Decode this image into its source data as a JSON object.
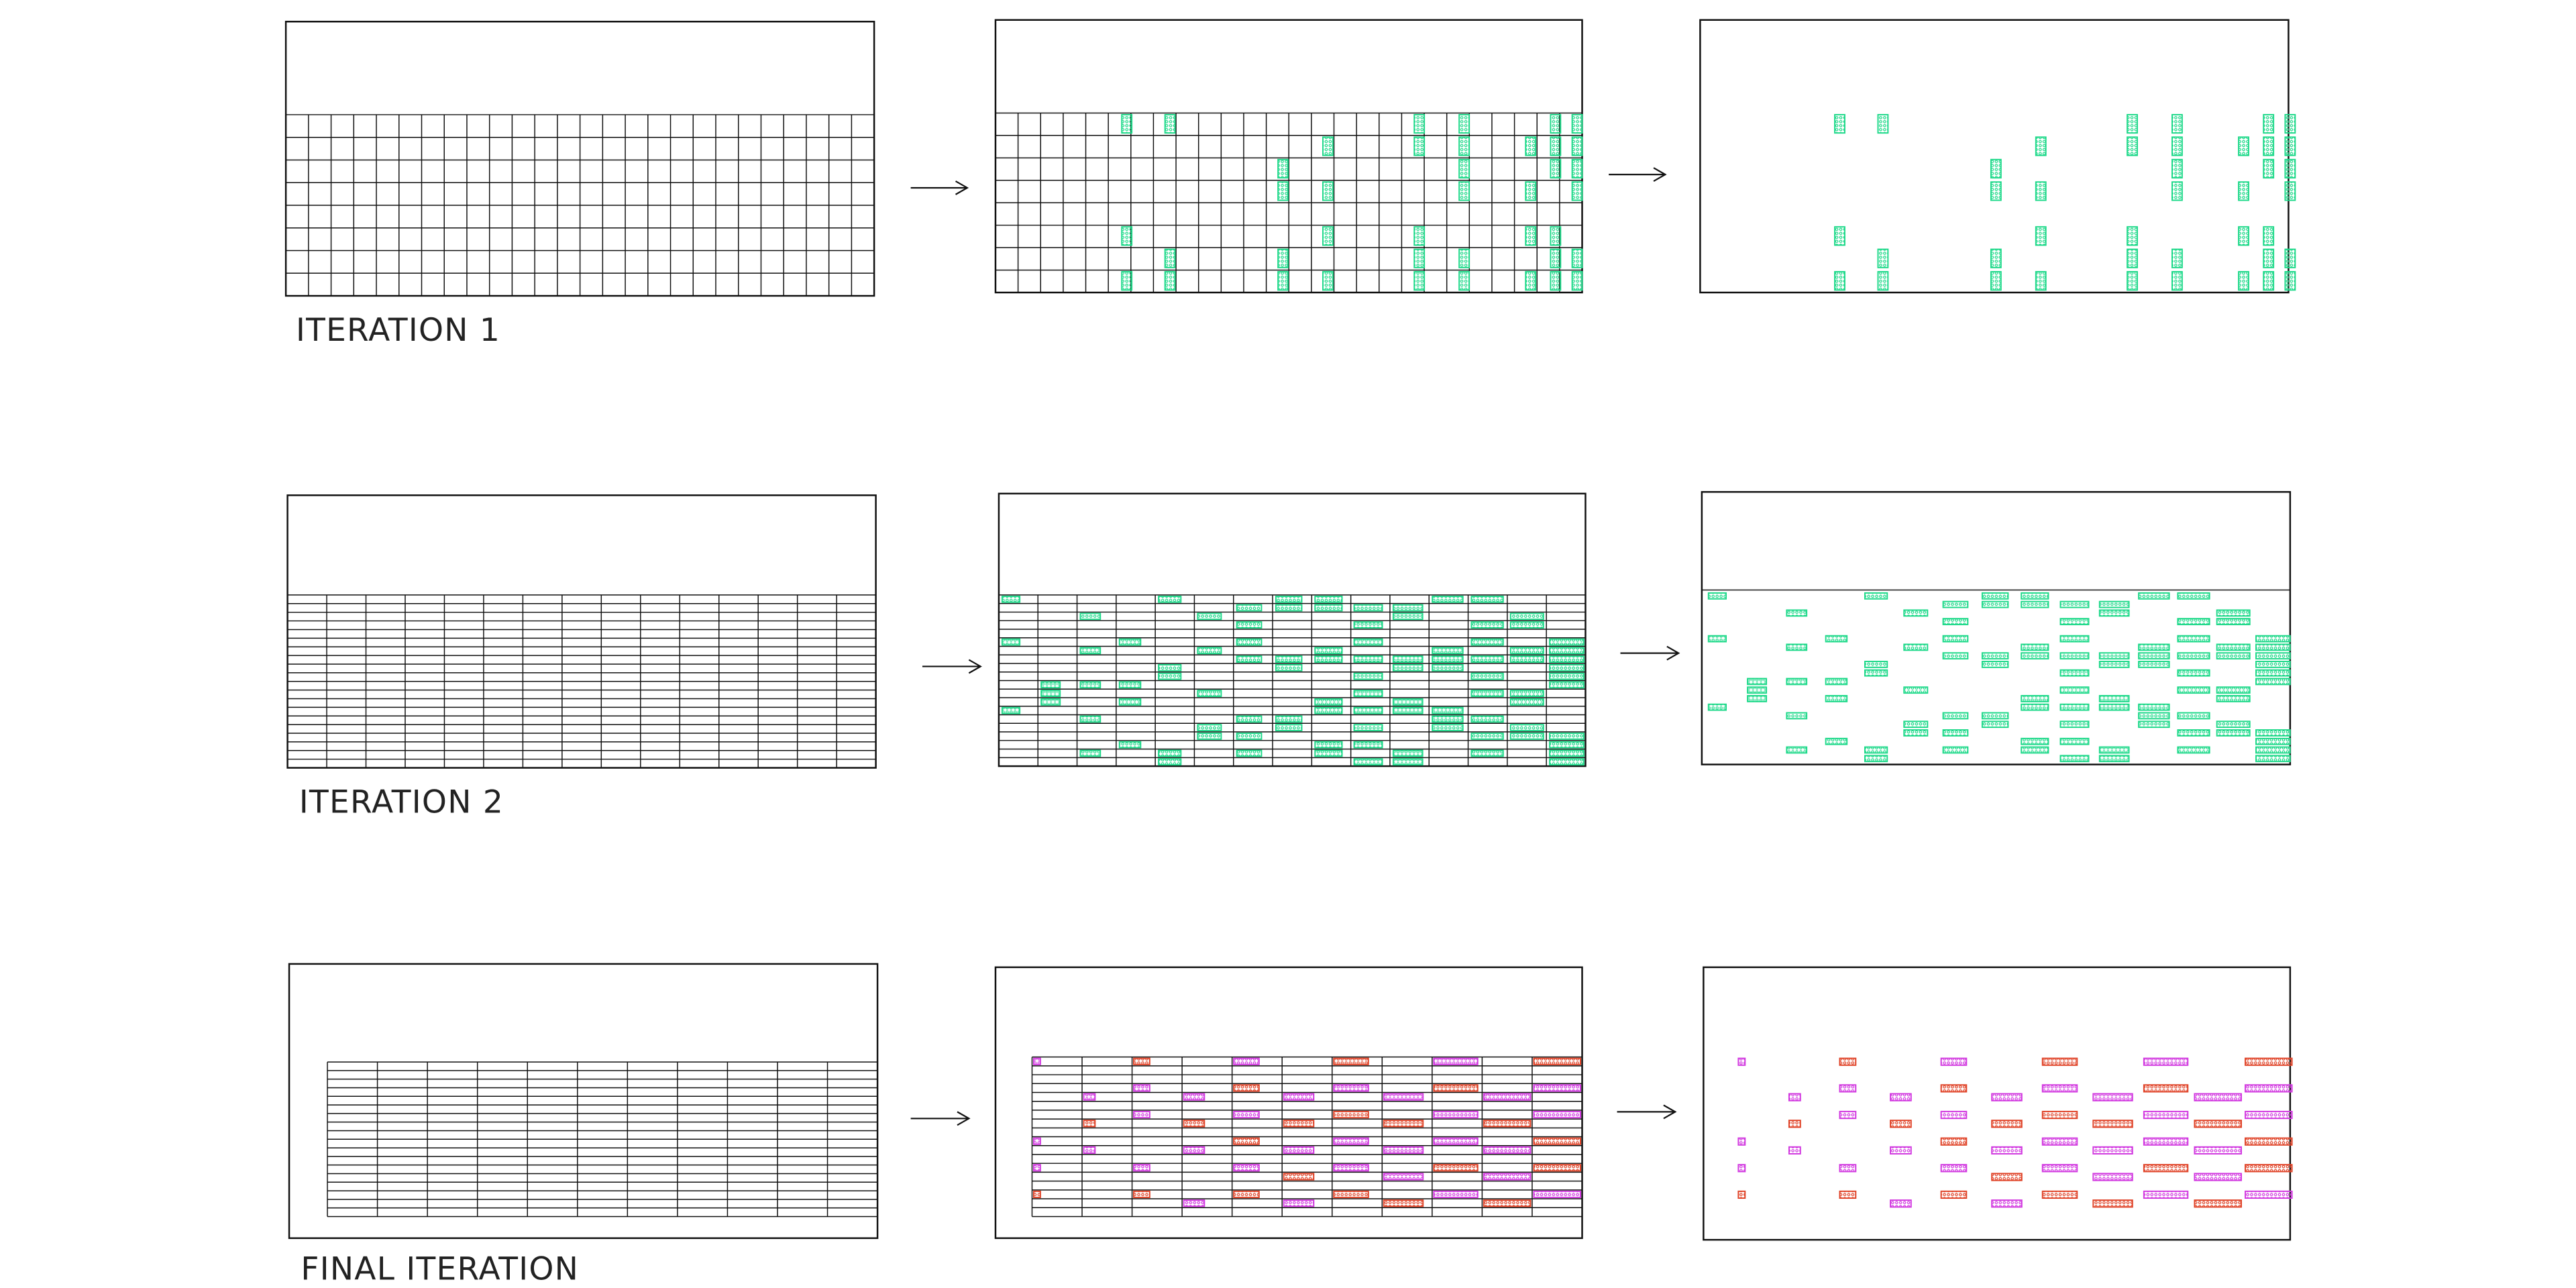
{
  "rows": [
    {
      "label": "ITERATION 1"
    },
    {
      "label": "ITERATION 2"
    },
    {
      "label": "FINAL ITERATION"
    }
  ]
}
